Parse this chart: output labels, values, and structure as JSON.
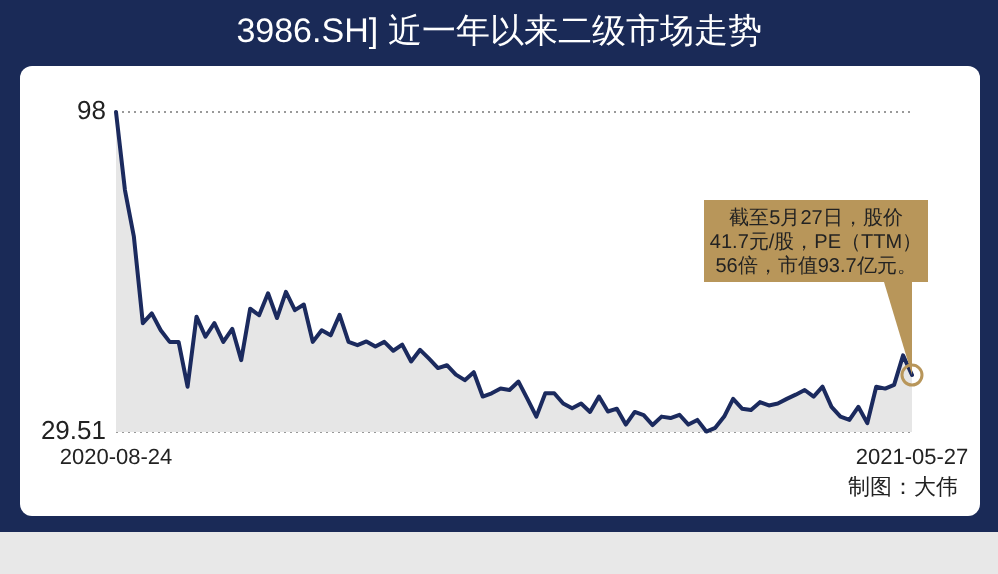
{
  "chart_data": {
    "type": "area",
    "title": "3986.SH] 近一年以来二级市场走势",
    "categories": [
      "2020-08-24",
      null,
      null,
      null,
      null,
      null,
      null,
      null,
      null,
      null,
      null,
      null,
      null,
      null,
      null,
      null,
      null,
      null,
      null,
      null,
      null,
      null,
      null,
      null,
      null,
      null,
      null,
      null,
      null,
      null,
      null,
      null,
      null,
      null,
      null,
      null,
      null,
      null,
      null,
      null,
      null,
      null,
      null,
      null,
      null,
      null,
      null,
      null,
      null,
      null,
      null,
      null,
      null,
      null,
      null,
      null,
      null,
      null,
      null,
      null,
      null,
      null,
      null,
      null,
      null,
      null,
      null,
      null,
      null,
      null,
      null,
      null,
      null,
      null,
      null,
      null,
      null,
      null,
      null,
      null,
      null,
      null,
      null,
      null,
      null,
      null,
      null,
      null,
      null,
      "2021-05-27"
    ],
    "series": [
      {
        "color": "#1b2a5e",
        "values": [
          98,
          81.3,
          71.3,
          52.8,
          54.9,
          51.3,
          48.8,
          48.8,
          39.2,
          54.2,
          49.9,
          52.8,
          48.8,
          51.6,
          44.9,
          55.9,
          54.5,
          59.2,
          53.9,
          59.5,
          55.6,
          56.8,
          48.8,
          51.3,
          50.2,
          54.6,
          48.8,
          48.1,
          48.9,
          47.8,
          48.8,
          46.9,
          48.2,
          44.6,
          47.1,
          45.2,
          43.2,
          43.8,
          41.8,
          40.6,
          42.3,
          37.1,
          37.8,
          38.8,
          38.5,
          40.3,
          36.6,
          32.8,
          37.8,
          37.8,
          35.6,
          34.6,
          35.6,
          33.8,
          37.1,
          33.9,
          34.5,
          31.1,
          33.8,
          33.1,
          31.0,
          32.8,
          32.5,
          33.2,
          31.1,
          32.1,
          29.6,
          30.4,
          32.8,
          36.6,
          34.5,
          34.2,
          35.9,
          35.2,
          35.6,
          36.6,
          37.5,
          38.5,
          37.1,
          39.2,
          34.9,
          32.8,
          32.1,
          34.9,
          31.4,
          39.2,
          38.8,
          39.6,
          45.9,
          41.7
        ]
      }
    ],
    "ylim": [
      29.51,
      98
    ],
    "yticks": [
      29.51,
      98
    ],
    "grid": "y",
    "annotations": [
      {
        "text": "截至5月27日，股价41.7元/股，PE（TTM）56倍，市值93.7亿元。",
        "x": "2021-05-27",
        "y": 41.7
      },
      "制图：大伟"
    ]
  }
}
